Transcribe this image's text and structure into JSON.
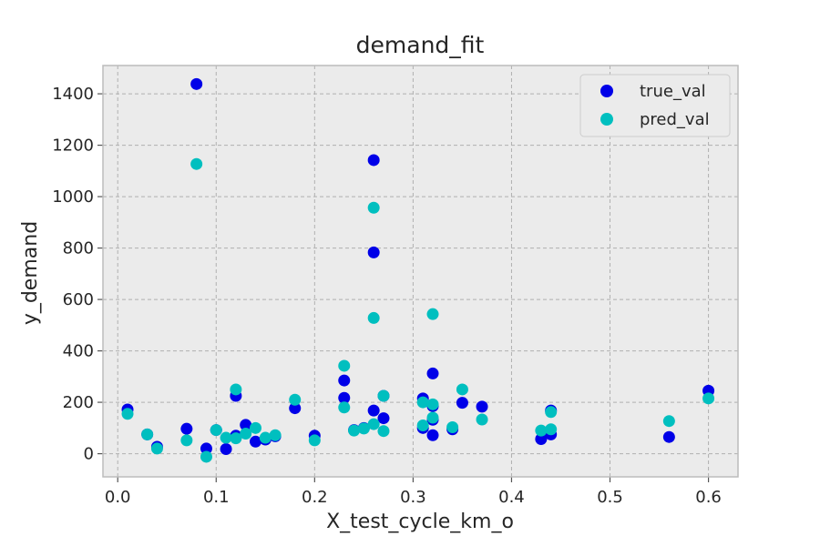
{
  "chart_data": {
    "type": "scatter",
    "title": "demand_fit",
    "xlabel": "X_test_cycle_km_o",
    "ylabel": "y_demand",
    "xlim": [
      -0.015,
      0.63
    ],
    "ylim": [
      -90,
      1510
    ],
    "xticks": [
      0.0,
      0.1,
      0.2,
      0.3,
      0.4,
      0.5,
      0.6
    ],
    "xtick_labels": [
      "0.0",
      "0.1",
      "0.2",
      "0.3",
      "0.4",
      "0.5",
      "0.6"
    ],
    "yticks": [
      0,
      200,
      400,
      600,
      800,
      1000,
      1200,
      1400
    ],
    "ytick_labels": [
      "0",
      "200",
      "400",
      "600",
      "800",
      "1000",
      "1200",
      "1400"
    ],
    "grid": true,
    "legend_position": "top-right",
    "background_color": "#ebebeb",
    "series": [
      {
        "name": "true_val",
        "color": "#0000e8",
        "points": [
          [
            0.01,
            172
          ],
          [
            0.03,
            75
          ],
          [
            0.04,
            27
          ],
          [
            0.07,
            97
          ],
          [
            0.08,
            1438
          ],
          [
            0.09,
            20
          ],
          [
            0.1,
            92
          ],
          [
            0.11,
            18
          ],
          [
            0.12,
            225
          ],
          [
            0.12,
            70
          ],
          [
            0.13,
            112
          ],
          [
            0.14,
            47
          ],
          [
            0.15,
            55
          ],
          [
            0.16,
            68
          ],
          [
            0.18,
            177
          ],
          [
            0.2,
            70
          ],
          [
            0.23,
            285
          ],
          [
            0.23,
            217
          ],
          [
            0.24,
            92
          ],
          [
            0.25,
            100
          ],
          [
            0.26,
            1142
          ],
          [
            0.26,
            783
          ],
          [
            0.26,
            168
          ],
          [
            0.27,
            225
          ],
          [
            0.27,
            138
          ],
          [
            0.31,
            215
          ],
          [
            0.31,
            100
          ],
          [
            0.32,
            312
          ],
          [
            0.32,
            185
          ],
          [
            0.32,
            132
          ],
          [
            0.32,
            72
          ],
          [
            0.34,
            95
          ],
          [
            0.35,
            198
          ],
          [
            0.37,
            183
          ],
          [
            0.43,
            57
          ],
          [
            0.44,
            168
          ],
          [
            0.44,
            75
          ],
          [
            0.56,
            65
          ],
          [
            0.6,
            245
          ]
        ]
      },
      {
        "name": "pred_val",
        "color": "#00bfbf",
        "points": [
          [
            0.01,
            155
          ],
          [
            0.03,
            75
          ],
          [
            0.04,
            20
          ],
          [
            0.07,
            52
          ],
          [
            0.08,
            1127
          ],
          [
            0.09,
            -12
          ],
          [
            0.1,
            92
          ],
          [
            0.11,
            62
          ],
          [
            0.12,
            250
          ],
          [
            0.12,
            60
          ],
          [
            0.13,
            78
          ],
          [
            0.14,
            100
          ],
          [
            0.15,
            62
          ],
          [
            0.16,
            72
          ],
          [
            0.18,
            210
          ],
          [
            0.2,
            52
          ],
          [
            0.23,
            342
          ],
          [
            0.23,
            180
          ],
          [
            0.24,
            90
          ],
          [
            0.25,
            98
          ],
          [
            0.26,
            957
          ],
          [
            0.26,
            528
          ],
          [
            0.26,
            115
          ],
          [
            0.27,
            225
          ],
          [
            0.27,
            88
          ],
          [
            0.31,
            200
          ],
          [
            0.31,
            110
          ],
          [
            0.32,
            543
          ],
          [
            0.32,
            192
          ],
          [
            0.32,
            140
          ],
          [
            0.34,
            103
          ],
          [
            0.35,
            250
          ],
          [
            0.37,
            133
          ],
          [
            0.43,
            90
          ],
          [
            0.44,
            162
          ],
          [
            0.44,
            95
          ],
          [
            0.56,
            127
          ],
          [
            0.6,
            215
          ]
        ]
      }
    ]
  }
}
